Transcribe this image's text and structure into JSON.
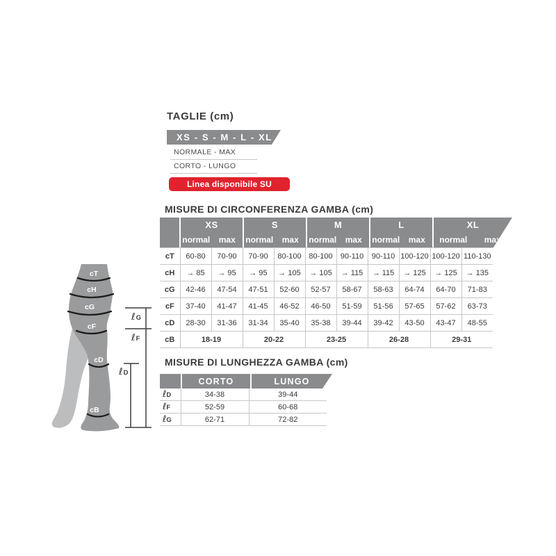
{
  "colors": {
    "header_gray": "#8a8b8d",
    "badge_red": "#e0232e",
    "text": "#3b3b3a",
    "border": "#c6c7c8",
    "leg_front": "#9a9b9d",
    "leg_back": "#bcbdbf",
    "band_line": "#1d1d1b"
  },
  "taglie": {
    "title": "TAGLIE (cm)",
    "sizes_banner": "XS - S - M - L - XL",
    "options": [
      "NORMALE - MAX",
      "CORTO - LUNGO"
    ],
    "badge": "Linea disponibile SU MISURA"
  },
  "circumference_table": {
    "title": "MISURE DI CIRCONFERENZA GAMBA (cm)",
    "groups": [
      "XS",
      "S",
      "M",
      "L",
      "XL"
    ],
    "subheaders": [
      "normal",
      "max"
    ],
    "rows": [
      {
        "label": "cT",
        "values": [
          "60-80",
          "70-90",
          "70-90",
          "80-100",
          "80-100",
          "90-110",
          "90-110",
          "100-120",
          "100-120",
          "110-130"
        ]
      },
      {
        "label": "cH",
        "values": [
          "→ 85",
          "→ 95",
          "→ 95",
          "→ 105",
          "→ 105",
          "→ 115",
          "→ 115",
          "→ 125",
          "→ 125",
          "→ 135"
        ]
      },
      {
        "label": "cG",
        "values": [
          "42-46",
          "47-54",
          "47-51",
          "52-60",
          "52-57",
          "58-67",
          "58-63",
          "64-74",
          "64-70",
          "71-83"
        ]
      },
      {
        "label": "cF",
        "values": [
          "37-40",
          "41-47",
          "41-45",
          "46-52",
          "46-50",
          "51-59",
          "51-56",
          "57-65",
          "57-62",
          "63-73"
        ]
      },
      {
        "label": "cD",
        "values": [
          "28-30",
          "31-36",
          "31-34",
          "35-40",
          "35-38",
          "39-44",
          "39-42",
          "43-50",
          "43-47",
          "48-55"
        ]
      }
    ],
    "span_row": {
      "label": "cB",
      "values": [
        "18-19",
        "20-22",
        "23-25",
        "26-28",
        "29-31"
      ]
    }
  },
  "length_table": {
    "title": "MISURE DI LUNGHEZZA GAMBA (cm)",
    "ell": "ℓ",
    "columns": [
      "CORTO",
      "LUNGO"
    ],
    "rows": [
      {
        "label": "D",
        "values": [
          "34-38",
          "39-44"
        ]
      },
      {
        "label": "F",
        "values": [
          "52-59",
          "60-68"
        ]
      },
      {
        "label": "G",
        "values": [
          "62-71",
          "72-82"
        ]
      }
    ]
  },
  "leg_diagram": {
    "band_labels": [
      "cT",
      "cH",
      "cG",
      "cF",
      "cD",
      "cB"
    ],
    "length_labels": [
      "G",
      "F",
      "D"
    ]
  }
}
